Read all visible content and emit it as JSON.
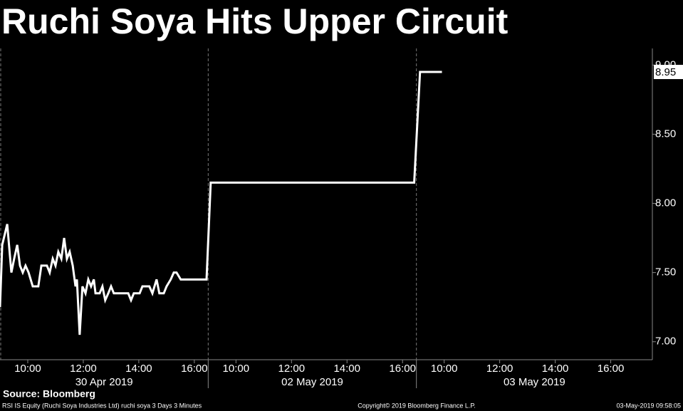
{
  "chart_data": {
    "type": "line",
    "title": "Ruchi Soya Hits Upper Circuit",
    "source": "Source: Bloomberg",
    "footer_left": "RSI IS Equity (Ruchi Soya Industries Ltd) ruchi soya 3 Days 3 Minutes",
    "footer_center": "Copyright© 2019 Bloomberg Finance L.P.",
    "footer_right": "03-May-2019 09:58:05",
    "color": "#ffffff",
    "dates": [
      "30 Apr 2019",
      "02 May 2019",
      "03 May 2019"
    ],
    "day_breaks": [
      16.5,
      24
    ],
    "x": [
      9.0,
      9.08,
      9.26,
      9.41,
      9.51,
      9.62,
      9.72,
      9.82,
      9.92,
      10.03,
      10.18,
      10.38,
      10.49,
      10.69,
      10.79,
      10.9,
      11.0,
      11.1,
      11.21,
      11.31,
      11.41,
      11.51,
      11.62,
      11.72,
      11.77,
      11.87,
      11.97,
      12.08,
      12.18,
      12.28,
      12.38,
      12.44,
      12.59,
      12.69,
      12.79,
      12.9,
      13.0,
      13.1,
      13.21,
      13.62,
      13.72,
      13.82,
      14.03,
      14.13,
      14.38,
      14.49,
      14.64,
      14.74,
      14.9,
      15.0,
      15.15,
      15.26,
      15.36,
      15.51,
      16.44,
      16.59,
      23.92,
      24.13,
      24.92
    ],
    "values": [
      7.25,
      7.7,
      7.85,
      7.5,
      7.6,
      7.7,
      7.55,
      7.5,
      7.55,
      7.5,
      7.4,
      7.4,
      7.55,
      7.55,
      7.5,
      7.6,
      7.55,
      7.65,
      7.6,
      7.75,
      7.6,
      7.65,
      7.55,
      7.4,
      7.45,
      7.05,
      7.4,
      7.35,
      7.45,
      7.4,
      7.45,
      7.35,
      7.35,
      7.4,
      7.3,
      7.35,
      7.4,
      7.35,
      7.35,
      7.35,
      7.3,
      7.35,
      7.35,
      7.4,
      7.4,
      7.35,
      7.45,
      7.35,
      7.35,
      7.4,
      7.45,
      7.5,
      7.5,
      7.45,
      7.45,
      8.15,
      8.15,
      8.95,
      8.95
    ],
    "last_value": 8.95,
    "xlim": [
      9,
      32.5
    ],
    "xticks": [
      {
        "value": 10,
        "label": "10:00"
      },
      {
        "value": 12,
        "label": "12:00"
      },
      {
        "value": 14,
        "label": "14:00"
      },
      {
        "value": 16,
        "label": "16:00"
      },
      {
        "value": 17.5,
        "label": "10:00"
      },
      {
        "value": 19.5,
        "label": "12:00"
      },
      {
        "value": 21.5,
        "label": "14:00"
      },
      {
        "value": 23.5,
        "label": "16:00"
      },
      {
        "value": 25,
        "label": "10:00"
      },
      {
        "value": 27,
        "label": "12:00"
      },
      {
        "value": 29,
        "label": "14:00"
      },
      {
        "value": 31,
        "label": "16:00"
      }
    ],
    "ylim": [
      6.87,
      9.12
    ],
    "yticks": [
      {
        "value": 7,
        "label": "7.00"
      },
      {
        "value": 7.5,
        "label": "7.50"
      },
      {
        "value": 8,
        "label": "8.00"
      },
      {
        "value": 8.5,
        "label": "8.50"
      },
      {
        "value": 9,
        "label": "9.00"
      }
    ]
  }
}
